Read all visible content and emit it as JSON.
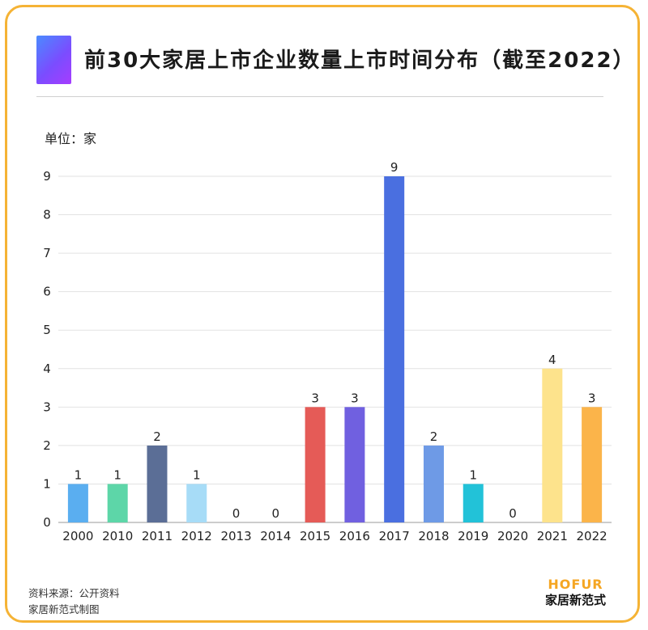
{
  "title": "前30大家居上市企业数量上市时间分布（截至2022）",
  "unit_label": "单位：家",
  "source_line1": "资料来源：公开资料",
  "source_line2": "家居新范式制图",
  "brand": {
    "logo_en": "HOFUR",
    "logo_cn": "家居新范式"
  },
  "colors": {
    "border": "#f5b335",
    "brand": "#f5a623"
  },
  "chart_data": {
    "type": "bar",
    "title": "前30大家居上市企业数量上市时间分布（截至2022）",
    "ylabel": "单位：家",
    "xlabel": "",
    "ylim": [
      0,
      9
    ],
    "yticks": [
      0,
      1,
      2,
      3,
      4,
      5,
      6,
      7,
      8,
      9
    ],
    "grid": true,
    "categories": [
      "2000",
      "2010",
      "2011",
      "2012",
      "2013",
      "2014",
      "2015",
      "2016",
      "2017",
      "2018",
      "2019",
      "2020",
      "2021",
      "2022"
    ],
    "values": [
      1,
      1,
      2,
      1,
      0,
      0,
      3,
      3,
      9,
      2,
      1,
      0,
      4,
      3
    ],
    "bar_colors": [
      "#5aaef0",
      "#5dd6a8",
      "#5b6e96",
      "#a7dcf7",
      "#cccccc",
      "#cccccc",
      "#e55b57",
      "#7060e0",
      "#4a6fe0",
      "#6e9ae6",
      "#22c2d8",
      "#cccccc",
      "#fde38c",
      "#fbb44a"
    ]
  }
}
